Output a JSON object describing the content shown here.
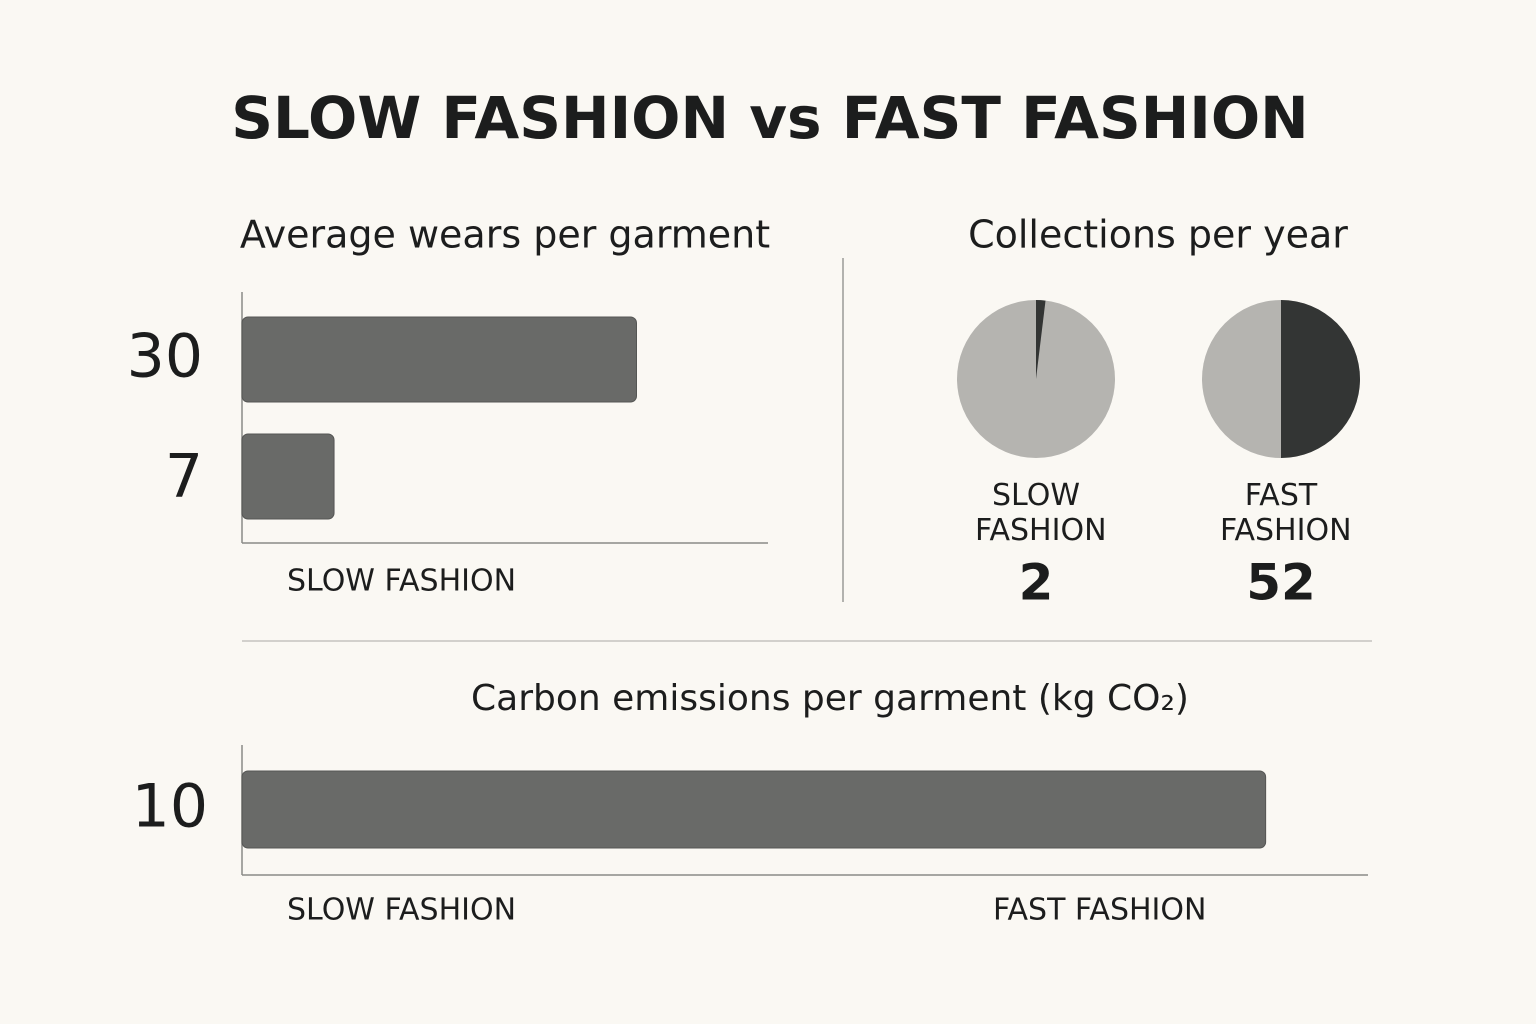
{
  "title": "SLOW FASHION vs FAST FASHION",
  "chart_data": [
    {
      "type": "bar",
      "title": "Average wears per garment",
      "values": [
        30,
        7
      ],
      "x_label": "SLOW FASHION",
      "xlim": [
        0,
        40
      ],
      "color": "#696a68"
    },
    {
      "type": "pie",
      "title": "Collections per year",
      "categories": [
        "SLOW FASHION",
        "FAST FASHION"
      ],
      "values": [
        2,
        52
      ],
      "colors": [
        "#b5b4b0",
        "#333534"
      ]
    },
    {
      "type": "bar",
      "title": "Carbon emissions per garment (kg CO₂)",
      "values": [
        10
      ],
      "axis_labels": [
        "SLOW FASHION",
        "FAST FASHION"
      ],
      "xlim": [
        0,
        11
      ],
      "color": "#696a68"
    }
  ]
}
